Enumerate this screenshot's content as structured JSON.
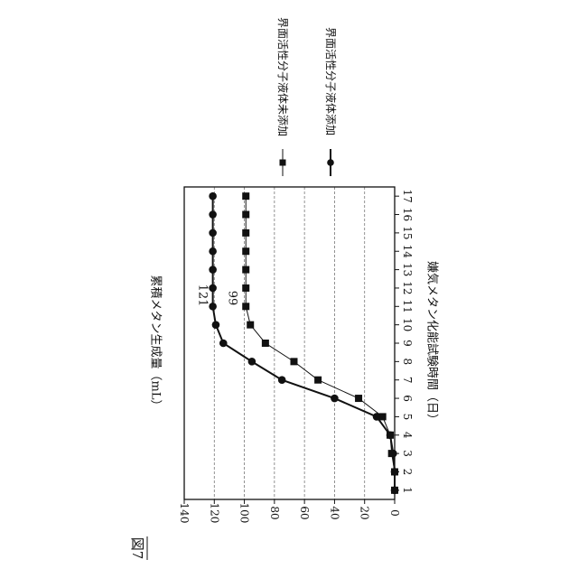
{
  "figure_label": "図7",
  "chart_data": {
    "type": "line",
    "title": "",
    "xlabel": "嫌気メタン化能試験時間（日）",
    "ylabel": "累積メタン生成量（mL）",
    "x": [
      1,
      2,
      3,
      4,
      5,
      6,
      7,
      8,
      9,
      10,
      11,
      12,
      13,
      14,
      15,
      16,
      17
    ],
    "xlim": [
      0.5,
      17.5
    ],
    "ylim": [
      0,
      140
    ],
    "yticks": [
      0,
      20,
      40,
      60,
      80,
      100,
      120,
      140
    ],
    "grid": "dashed horizontal at 20, 40, 60, 80, 100, 120",
    "legend_position": "right (rotated)",
    "series": [
      {
        "name": "界面活性分子液体未添加",
        "marker": "square",
        "line": "thin",
        "values": [
          0,
          0,
          2,
          3,
          8,
          24,
          51,
          67,
          86,
          96,
          99,
          99,
          99,
          99,
          99,
          99,
          99
        ],
        "end_label": "99"
      },
      {
        "name": "界面活性分子液体添加",
        "marker": "circle",
        "line": "thick",
        "values": [
          0,
          0,
          1,
          3,
          12,
          40,
          75,
          95,
          114,
          119,
          121,
          121,
          121,
          121,
          121,
          121,
          121
        ],
        "end_label": "121"
      }
    ]
  }
}
